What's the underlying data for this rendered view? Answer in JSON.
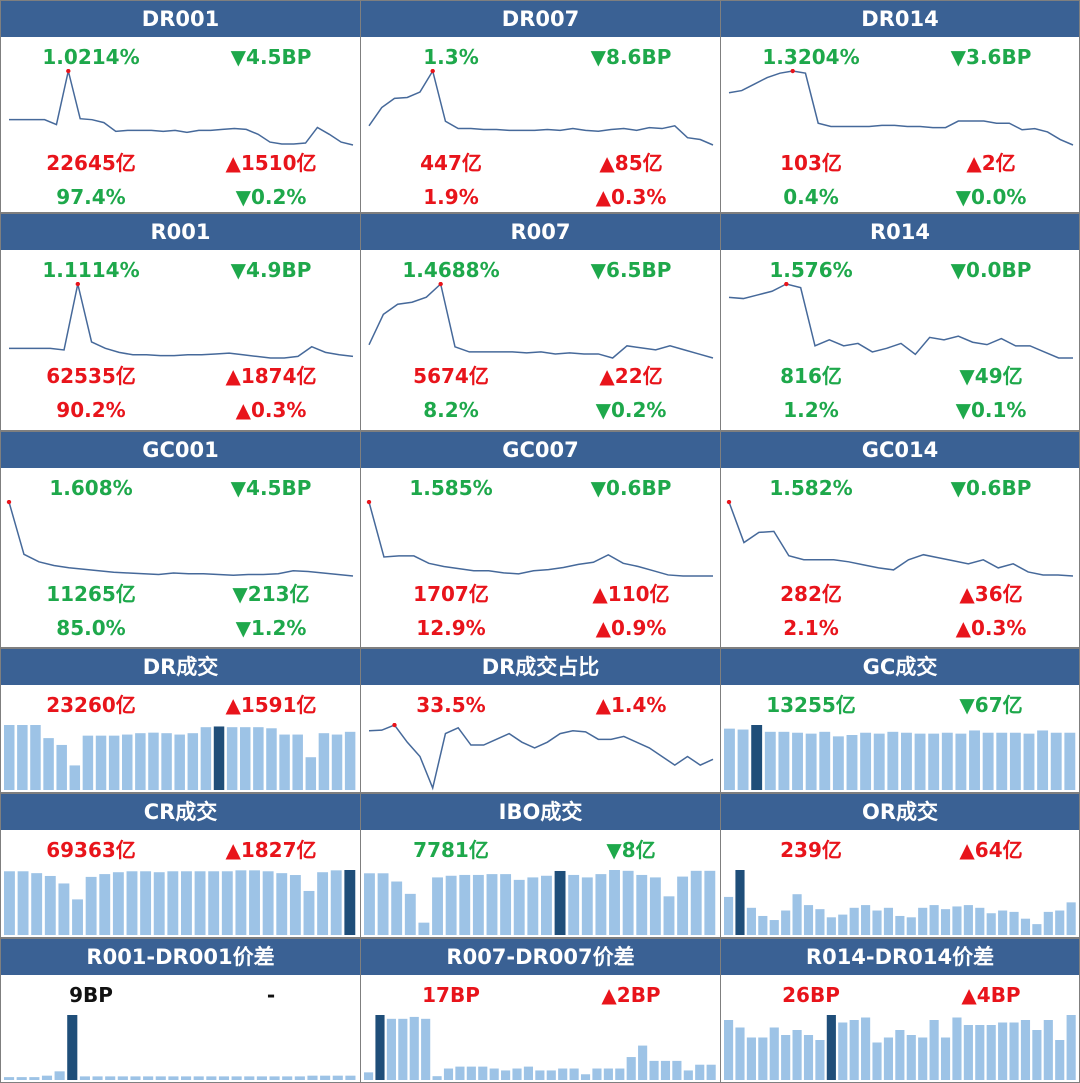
{
  "style": {
    "header": "#3a6194",
    "line": "#46699a",
    "dot": "#e8141b",
    "bar": "#9dc3e6",
    "bar_highlight": "#1f4e79"
  },
  "panels": [
    {
      "title": "DR001",
      "stats": [
        [
          {
            "text": "1.0214%",
            "color": "#1ea84b"
          },
          {
            "text": "▼4.5BP",
            "color": "#1ea84b"
          }
        ],
        [
          {
            "text": "22645亿",
            "color": "#e8141b"
          },
          {
            "text": "▲1510亿",
            "color": "#e8141b"
          }
        ],
        [
          {
            "text": "97.4%",
            "color": "#1ea84b"
          },
          {
            "text": "▼0.2%",
            "color": "#1ea84b"
          }
        ]
      ],
      "chart": {
        "type": "line",
        "highlight": 5,
        "values": [
          1.45,
          1.45,
          1.45,
          1.45,
          1.4,
          1.95,
          1.46,
          1.45,
          1.42,
          1.33,
          1.34,
          1.34,
          1.34,
          1.33,
          1.34,
          1.32,
          1.34,
          1.34,
          1.35,
          1.36,
          1.35,
          1.3,
          1.22,
          1.2,
          1.2,
          1.21,
          1.37,
          1.3,
          1.22,
          1.19
        ]
      }
    },
    {
      "title": "DR007",
      "stats": [
        [
          {
            "text": "1.3%",
            "color": "#1ea84b"
          },
          {
            "text": "▼8.6BP",
            "color": "#1ea84b"
          }
        ],
        [
          {
            "text": "447亿",
            "color": "#e8141b"
          },
          {
            "text": "▲85亿",
            "color": "#e8141b"
          }
        ],
        [
          {
            "text": "1.9%",
            "color": "#e8141b"
          },
          {
            "text": "▲0.3%",
            "color": "#e8141b"
          }
        ]
      ],
      "chart": {
        "type": "line",
        "highlight": 5,
        "values": [
          1.55,
          1.75,
          1.85,
          1.86,
          1.92,
          2.15,
          1.6,
          1.52,
          1.52,
          1.51,
          1.51,
          1.5,
          1.5,
          1.5,
          1.51,
          1.5,
          1.52,
          1.5,
          1.49,
          1.51,
          1.52,
          1.5,
          1.53,
          1.52,
          1.55,
          1.42,
          1.4,
          1.34
        ]
      }
    },
    {
      "title": "DR014",
      "stats": [
        [
          {
            "text": "1.3204%",
            "color": "#1ea84b"
          },
          {
            "text": "▼3.6BP",
            "color": "#1ea84b"
          }
        ],
        [
          {
            "text": "103亿",
            "color": "#e8141b"
          },
          {
            "text": "▲2亿",
            "color": "#e8141b"
          }
        ],
        [
          {
            "text": "0.4%",
            "color": "#1ea84b"
          },
          {
            "text": "▼0.0%",
            "color": "#1ea84b"
          }
        ]
      ],
      "chart": {
        "type": "line",
        "highlight": 5,
        "values": [
          1.88,
          1.9,
          1.96,
          2.02,
          2.06,
          2.08,
          2.06,
          1.6,
          1.57,
          1.57,
          1.57,
          1.57,
          1.58,
          1.58,
          1.57,
          1.57,
          1.56,
          1.56,
          1.62,
          1.62,
          1.62,
          1.6,
          1.6,
          1.54,
          1.55,
          1.52,
          1.45,
          1.4
        ]
      }
    },
    {
      "title": "R001",
      "stats": [
        [
          {
            "text": "1.1114%",
            "color": "#1ea84b"
          },
          {
            "text": "▼4.9BP",
            "color": "#1ea84b"
          }
        ],
        [
          {
            "text": "62535亿",
            "color": "#e8141b"
          },
          {
            "text": "▲1874亿",
            "color": "#e8141b"
          }
        ],
        [
          {
            "text": "90.2%",
            "color": "#e8141b"
          },
          {
            "text": "▲0.3%",
            "color": "#e8141b"
          }
        ]
      ],
      "chart": {
        "type": "line",
        "highlight": 5,
        "values": [
          1.6,
          1.6,
          1.6,
          1.6,
          1.58,
          2.4,
          1.68,
          1.6,
          1.55,
          1.52,
          1.52,
          1.51,
          1.51,
          1.52,
          1.52,
          1.53,
          1.54,
          1.52,
          1.5,
          1.48,
          1.48,
          1.5,
          1.62,
          1.55,
          1.52,
          1.5
        ]
      }
    },
    {
      "title": "R007",
      "stats": [
        [
          {
            "text": "1.4688%",
            "color": "#1ea84b"
          },
          {
            "text": "▼6.5BP",
            "color": "#1ea84b"
          }
        ],
        [
          {
            "text": "5674亿",
            "color": "#e8141b"
          },
          {
            "text": "▲22亿",
            "color": "#e8141b"
          }
        ],
        [
          {
            "text": "8.2%",
            "color": "#1ea84b"
          },
          {
            "text": "▼0.2%",
            "color": "#1ea84b"
          }
        ]
      ],
      "chart": {
        "type": "line",
        "highlight": 5,
        "values": [
          1.75,
          2.05,
          2.15,
          2.17,
          2.22,
          2.35,
          1.73,
          1.68,
          1.68,
          1.68,
          1.68,
          1.67,
          1.68,
          1.66,
          1.67,
          1.66,
          1.66,
          1.62,
          1.74,
          1.72,
          1.7,
          1.74,
          1.7,
          1.66,
          1.62
        ]
      }
    },
    {
      "title": "R014",
      "stats": [
        [
          {
            "text": "1.576%",
            "color": "#1ea84b"
          },
          {
            "text": "▼0.0BP",
            "color": "#1ea84b"
          }
        ],
        [
          {
            "text": "816亿",
            "color": "#1ea84b"
          },
          {
            "text": "▼49亿",
            "color": "#1ea84b"
          }
        ],
        [
          {
            "text": "1.2%",
            "color": "#1ea84b"
          },
          {
            "text": "▼0.1%",
            "color": "#1ea84b"
          }
        ]
      ],
      "chart": {
        "type": "line",
        "highlight": 4,
        "values": [
          1.95,
          1.94,
          1.97,
          2.0,
          2.06,
          2.03,
          1.55,
          1.6,
          1.55,
          1.57,
          1.5,
          1.53,
          1.57,
          1.48,
          1.62,
          1.6,
          1.63,
          1.58,
          1.56,
          1.61,
          1.55,
          1.55,
          1.5,
          1.45,
          1.45
        ]
      }
    },
    {
      "title": "GC001",
      "stats": [
        [
          {
            "text": "1.608%",
            "color": "#1ea84b"
          },
          {
            "text": "▼4.5BP",
            "color": "#1ea84b"
          }
        ],
        [
          {
            "text": "11265亿",
            "color": "#1ea84b"
          },
          {
            "text": "▼213亿",
            "color": "#1ea84b"
          }
        ],
        [
          {
            "text": "85.0%",
            "color": "#1ea84b"
          },
          {
            "text": "▼1.2%",
            "color": "#1ea84b"
          }
        ]
      ],
      "chart": {
        "type": "line",
        "highlight": 0,
        "values": [
          2.6,
          1.9,
          1.8,
          1.75,
          1.72,
          1.7,
          1.68,
          1.66,
          1.65,
          1.64,
          1.63,
          1.65,
          1.64,
          1.64,
          1.63,
          1.62,
          1.63,
          1.63,
          1.64,
          1.68,
          1.67,
          1.65,
          1.63,
          1.61
        ]
      }
    },
    {
      "title": "GC007",
      "stats": [
        [
          {
            "text": "1.585%",
            "color": "#1ea84b"
          },
          {
            "text": "▼0.6BP",
            "color": "#1ea84b"
          }
        ],
        [
          {
            "text": "1707亿",
            "color": "#e8141b"
          },
          {
            "text": "▲110亿",
            "color": "#e8141b"
          }
        ],
        [
          {
            "text": "12.9%",
            "color": "#e8141b"
          },
          {
            "text": "▲0.9%",
            "color": "#e8141b"
          }
        ]
      ],
      "chart": {
        "type": "line",
        "highlight": 0,
        "values": [
          2.45,
          1.93,
          1.94,
          1.94,
          1.87,
          1.84,
          1.82,
          1.8,
          1.8,
          1.78,
          1.77,
          1.8,
          1.81,
          1.83,
          1.86,
          1.88,
          1.95,
          1.87,
          1.84,
          1.8,
          1.76,
          1.75,
          1.75,
          1.75
        ]
      }
    },
    {
      "title": "GC014",
      "stats": [
        [
          {
            "text": "1.582%",
            "color": "#1ea84b"
          },
          {
            "text": "▼0.6BP",
            "color": "#1ea84b"
          }
        ],
        [
          {
            "text": "282亿",
            "color": "#e8141b"
          },
          {
            "text": "▲36亿",
            "color": "#e8141b"
          }
        ],
        [
          {
            "text": "2.1%",
            "color": "#e8141b"
          },
          {
            "text": "▲0.3%",
            "color": "#e8141b"
          }
        ]
      ],
      "chart": {
        "type": "line",
        "highlight": 0,
        "values": [
          2.45,
          2.05,
          2.15,
          2.16,
          1.92,
          1.88,
          1.88,
          1.88,
          1.86,
          1.83,
          1.8,
          1.78,
          1.88,
          1.93,
          1.9,
          1.87,
          1.84,
          1.88,
          1.8,
          1.84,
          1.76,
          1.73,
          1.73,
          1.72
        ]
      }
    },
    {
      "title": "DR成交",
      "stats": [
        [
          {
            "text": "23260亿",
            "color": "#e8141b"
          },
          {
            "text": "▲1591亿",
            "color": "#e8141b"
          }
        ]
      ],
      "chart": {
        "type": "bar",
        "highlight": 16,
        "values": [
          23800,
          23800,
          23800,
          19000,
          16500,
          9000,
          19900,
          19900,
          19900,
          20300,
          20800,
          21000,
          20800,
          20300,
          20800,
          23000,
          23260,
          23000,
          23000,
          23000,
          22600,
          20300,
          20300,
          12000,
          20800,
          20300,
          21300
        ]
      }
    },
    {
      "title": "DR成交占比",
      "stats": [
        [
          {
            "text": "33.5%",
            "color": "#e8141b"
          },
          {
            "text": "▲1.4%",
            "color": "#e8141b"
          }
        ]
      ],
      "chart": {
        "type": "line",
        "highlight": 2,
        "values": [
          33.0,
          33.1,
          34.0,
          31.0,
          28.5,
          23.0,
          32.5,
          33.5,
          30.5,
          30.5,
          31.5,
          32.5,
          31.0,
          30.0,
          31.0,
          32.5,
          33.0,
          32.8,
          31.5,
          31.5,
          32.0,
          31.0,
          30.0,
          28.5,
          27.0,
          28.5,
          27.0,
          28.0
        ]
      }
    },
    {
      "title": "GC成交",
      "stats": [
        [
          {
            "text": "13255亿",
            "color": "#1ea84b"
          },
          {
            "text": "▼67亿",
            "color": "#1ea84b"
          }
        ]
      ],
      "chart": {
        "type": "bar",
        "highlight": 2,
        "values": [
          13500,
          13300,
          14300,
          12800,
          12800,
          12600,
          12400,
          12800,
          11800,
          12100,
          12600,
          12400,
          12800,
          12600,
          12400,
          12400,
          12600,
          12400,
          13100,
          12600,
          12600,
          12600,
          12400,
          13100,
          12600,
          12600
        ]
      }
    },
    {
      "title": "CR成交",
      "stats": [
        [
          {
            "text": "69363亿",
            "color": "#e8141b"
          },
          {
            "text": "▲1827亿",
            "color": "#e8141b"
          }
        ]
      ],
      "chart": {
        "type": "bar",
        "highlight": 25,
        "values": [
          68000,
          68000,
          66000,
          63000,
          55000,
          38000,
          62000,
          65000,
          67000,
          68000,
          68000,
          67000,
          68000,
          68000,
          68000,
          68000,
          68000,
          69000,
          69000,
          68000,
          66000,
          64000,
          47000,
          67000,
          69000,
          69363
        ]
      }
    },
    {
      "title": "IBO成交",
      "stats": [
        [
          {
            "text": "7781亿",
            "color": "#1ea84b"
          },
          {
            "text": "▼8亿",
            "color": "#1ea84b"
          }
        ]
      ],
      "chart": {
        "type": "bar",
        "highlight": 14,
        "values": [
          7500,
          7500,
          6500,
          5000,
          1500,
          7000,
          7200,
          7300,
          7300,
          7400,
          7400,
          6700,
          7000,
          7200,
          7781,
          7300,
          7000,
          7400,
          7900,
          7800,
          7300,
          7000,
          4700,
          7100,
          7800,
          7800
        ]
      }
    },
    {
      "title": "OR成交",
      "stats": [
        [
          {
            "text": "239亿",
            "color": "#e8141b"
          },
          {
            "text": "▲64亿",
            "color": "#e8141b"
          }
        ]
      ],
      "chart": {
        "type": "bar",
        "highlight": 1,
        "values": [
          140,
          239,
          100,
          70,
          55,
          90,
          150,
          110,
          95,
          65,
          75,
          100,
          110,
          90,
          100,
          70,
          65,
          100,
          110,
          95,
          105,
          110,
          100,
          80,
          90,
          85,
          60,
          40,
          85,
          90,
          120
        ]
      }
    },
    {
      "title": "R001-DR001价差",
      "stats": [
        [
          {
            "text": "9BP",
            "color": "#111111"
          },
          {
            "text": "-",
            "color": "#111111"
          }
        ]
      ],
      "chart": {
        "type": "bar",
        "highlight": 5,
        "values": [
          0.4,
          0.4,
          0.4,
          0.6,
          1.2,
          9,
          0.5,
          0.5,
          0.5,
          0.5,
          0.5,
          0.5,
          0.5,
          0.5,
          0.5,
          0.5,
          0.5,
          0.5,
          0.5,
          0.5,
          0.5,
          0.5,
          0.5,
          0.5,
          0.6,
          0.6,
          0.6,
          0.6
        ]
      }
    },
    {
      "title": "R007-DR007价差",
      "stats": [
        [
          {
            "text": "17BP",
            "color": "#e8141b"
          },
          {
            "text": "▲2BP",
            "color": "#e8141b"
          }
        ]
      ],
      "chart": {
        "type": "bar",
        "highlight": 1,
        "values": [
          2,
          17,
          16,
          16,
          16.5,
          16,
          1,
          3,
          3.5,
          3.5,
          3.5,
          3,
          2.5,
          3,
          3.5,
          2.5,
          2.5,
          3,
          3,
          1.5,
          3,
          3,
          3,
          6,
          9,
          5,
          5,
          5,
          2.5,
          4,
          4
        ]
      }
    },
    {
      "title": "R014-DR014价差",
      "stats": [
        [
          {
            "text": "26BP",
            "color": "#e8141b"
          },
          {
            "text": "▲4BP",
            "color": "#e8141b"
          }
        ]
      ],
      "chart": {
        "type": "bar",
        "highlight": 9,
        "values": [
          24,
          21,
          17,
          17,
          21,
          18,
          20,
          18,
          16,
          26,
          23,
          24,
          25,
          15,
          17,
          20,
          18,
          17,
          24,
          17,
          25,
          22,
          22,
          22,
          23,
          23,
          24,
          20,
          24,
          16,
          26
        ]
      }
    }
  ]
}
